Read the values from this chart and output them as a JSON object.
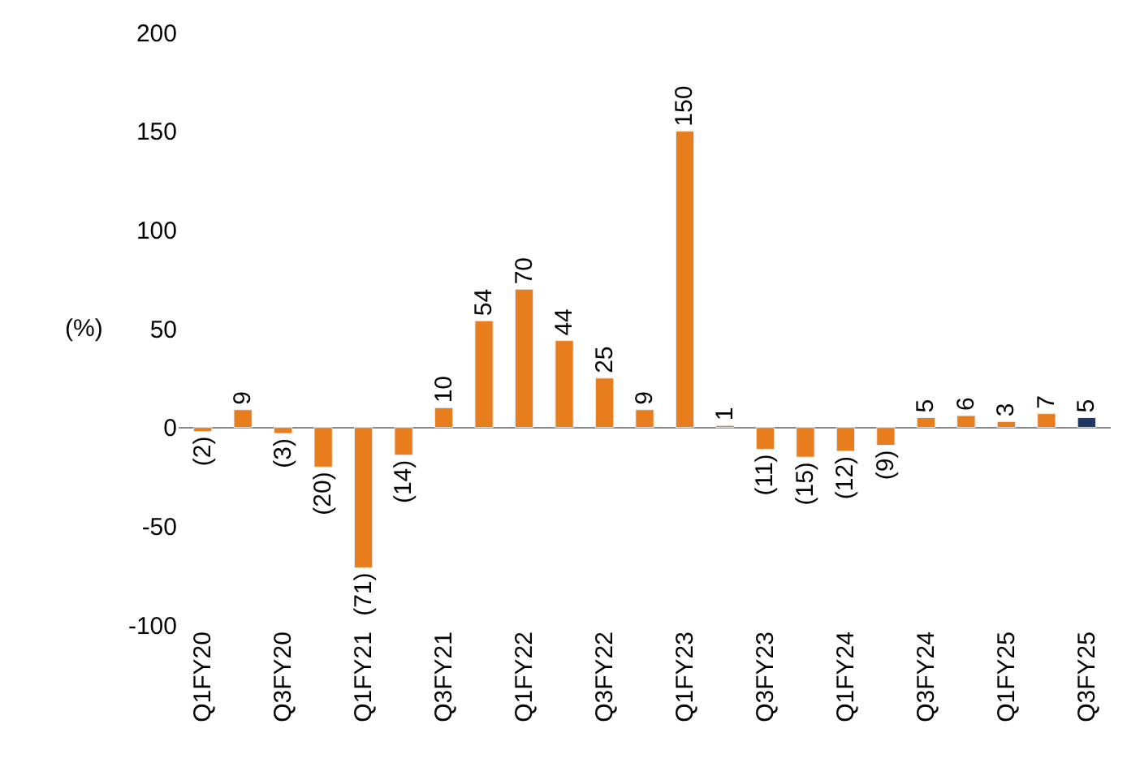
{
  "chart_data": {
    "type": "bar",
    "ylabel": "(%)",
    "categories": [
      "Q1FY20",
      null,
      "Q3FY20",
      null,
      "Q1FY21",
      null,
      "Q3FY21",
      null,
      "Q1FY22",
      null,
      "Q3FY22",
      null,
      "Q1FY23",
      null,
      "Q3FY23",
      null,
      "Q1FY24",
      null,
      "Q3FY24",
      null,
      "Q1FY25",
      null,
      "Q3FY25"
    ],
    "values": [
      -2,
      9,
      -3,
      -20,
      -71,
      -14,
      10,
      54,
      70,
      44,
      25,
      9,
      150,
      1,
      -11,
      -15,
      -12,
      -9,
      5,
      6,
      3,
      7,
      5
    ],
    "value_labels": [
      "(2)",
      "9",
      "(3)",
      "(20)",
      "(71)",
      "(14)",
      "10",
      "54",
      "70",
      "44",
      "25",
      "9",
      "150",
      "1",
      "(11)",
      "(15)",
      "(12)",
      "(9)",
      "5",
      "6",
      "3",
      "7",
      "5"
    ],
    "colors": [
      "#e87d1e",
      "#e87d1e",
      "#e87d1e",
      "#e87d1e",
      "#e87d1e",
      "#e87d1e",
      "#e87d1e",
      "#e87d1e",
      "#e87d1e",
      "#e87d1e",
      "#e87d1e",
      "#e87d1e",
      "#e87d1e",
      "#e87d1e",
      "#e87d1e",
      "#e87d1e",
      "#e87d1e",
      "#e87d1e",
      "#e87d1e",
      "#e87d1e",
      "#e87d1e",
      "#e87d1e",
      "#1f3864"
    ],
    "ylim": [
      -100,
      200
    ],
    "yticks": [
      -100,
      -50,
      0,
      50,
      100,
      150,
      200
    ],
    "legend": false
  }
}
